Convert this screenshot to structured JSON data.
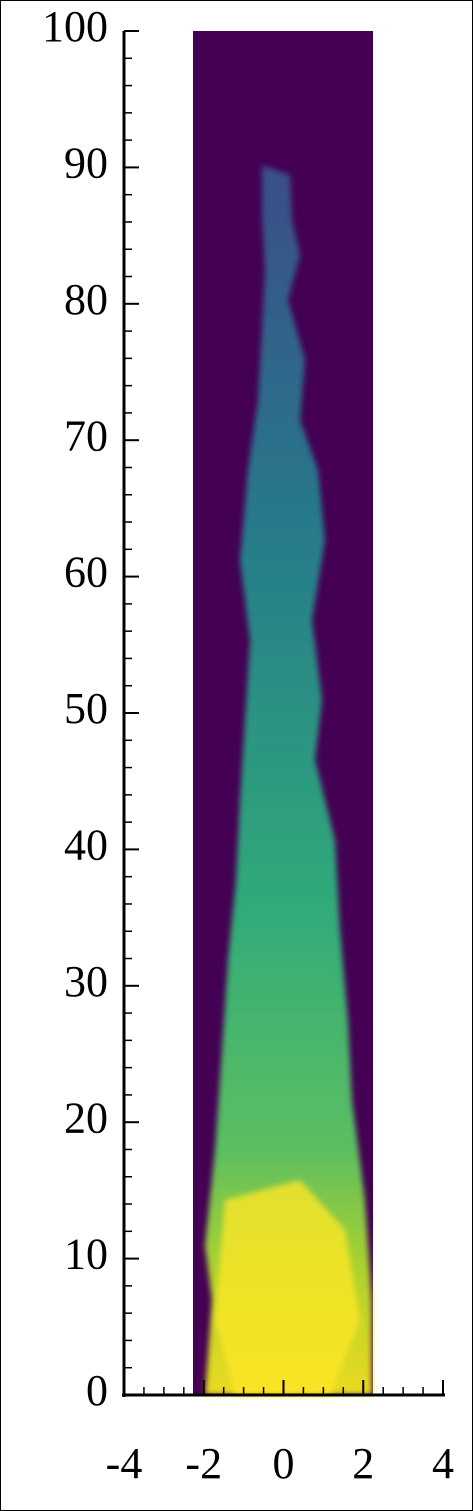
{
  "chart_data": {
    "type": "image",
    "xlim": [
      -4,
      4
    ],
    "ylim": [
      0,
      100
    ],
    "xticks": [
      -4,
      -2,
      0,
      2,
      4
    ],
    "yticks": [
      0,
      10,
      20,
      30,
      40,
      50,
      60,
      70,
      80,
      90,
      100
    ],
    "xminorticks": [
      -3.5,
      -3,
      -2.5,
      -1.5,
      -1,
      -0.5,
      0.5,
      1,
      1.5,
      2.5,
      3,
      3.5
    ],
    "yminorticks": [
      2,
      4,
      6,
      8,
      12,
      14,
      16,
      18,
      22,
      24,
      26,
      28,
      32,
      34,
      36,
      38,
      42,
      44,
      46,
      48,
      52,
      54,
      56,
      58,
      62,
      64,
      66,
      68,
      72,
      74,
      76,
      78,
      82,
      84,
      86,
      88,
      92,
      94,
      96,
      98
    ]
  }
}
